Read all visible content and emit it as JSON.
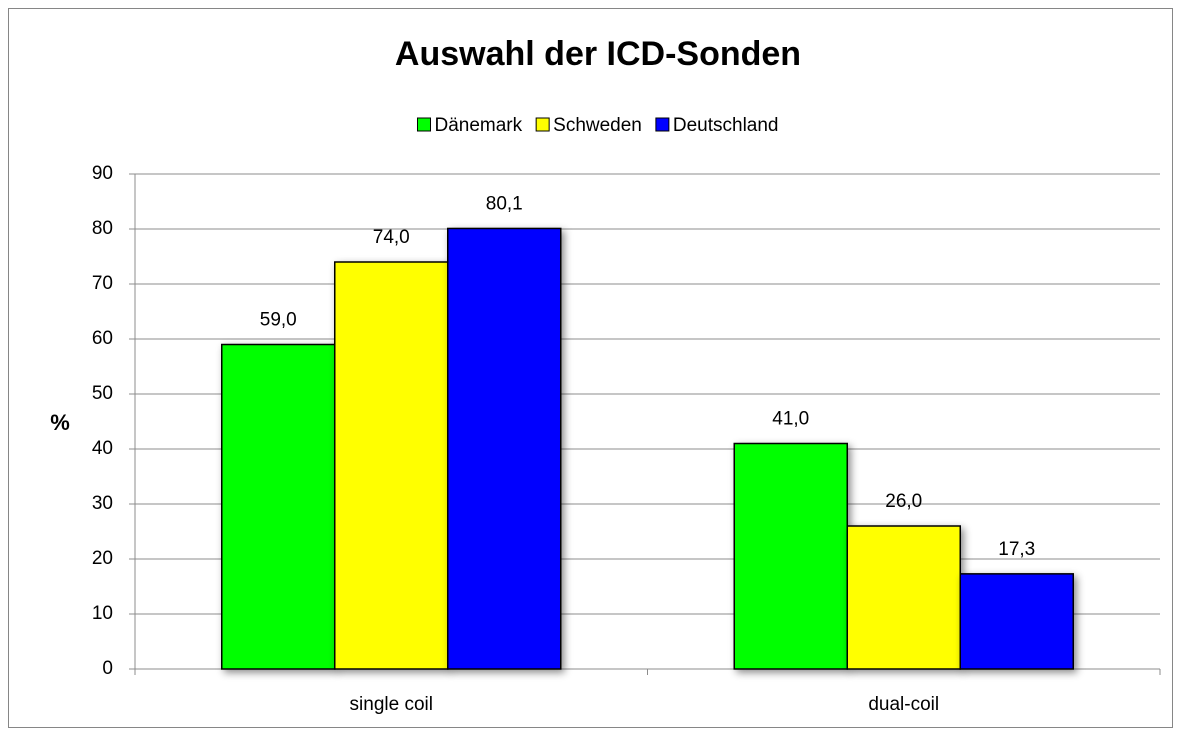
{
  "chart_data": {
    "type": "bar",
    "title": "Auswahl der ICD-Sonden",
    "ylabel": "%",
    "categories": [
      "single coil",
      "dual-coil"
    ],
    "series": [
      {
        "name": "Dänemark",
        "color": "#00ff00",
        "values": [
          59,
          41
        ],
        "value_labels": [
          "59,0",
          "41,0"
        ]
      },
      {
        "name": "Schweden",
        "color": "#ffff00",
        "values": [
          74,
          26
        ],
        "value_labels": [
          "74,0",
          "26,0"
        ]
      },
      {
        "name": "Deutschland",
        "color": "#0000ff",
        "values": [
          80.1,
          17.3
        ],
        "value_labels": [
          "80,1",
          "17,3"
        ]
      }
    ],
    "ylim": [
      0,
      90
    ],
    "yticks": [
      0,
      10,
      20,
      30,
      40,
      50,
      60,
      70,
      80,
      90
    ],
    "grid": true,
    "legend": "top"
  }
}
